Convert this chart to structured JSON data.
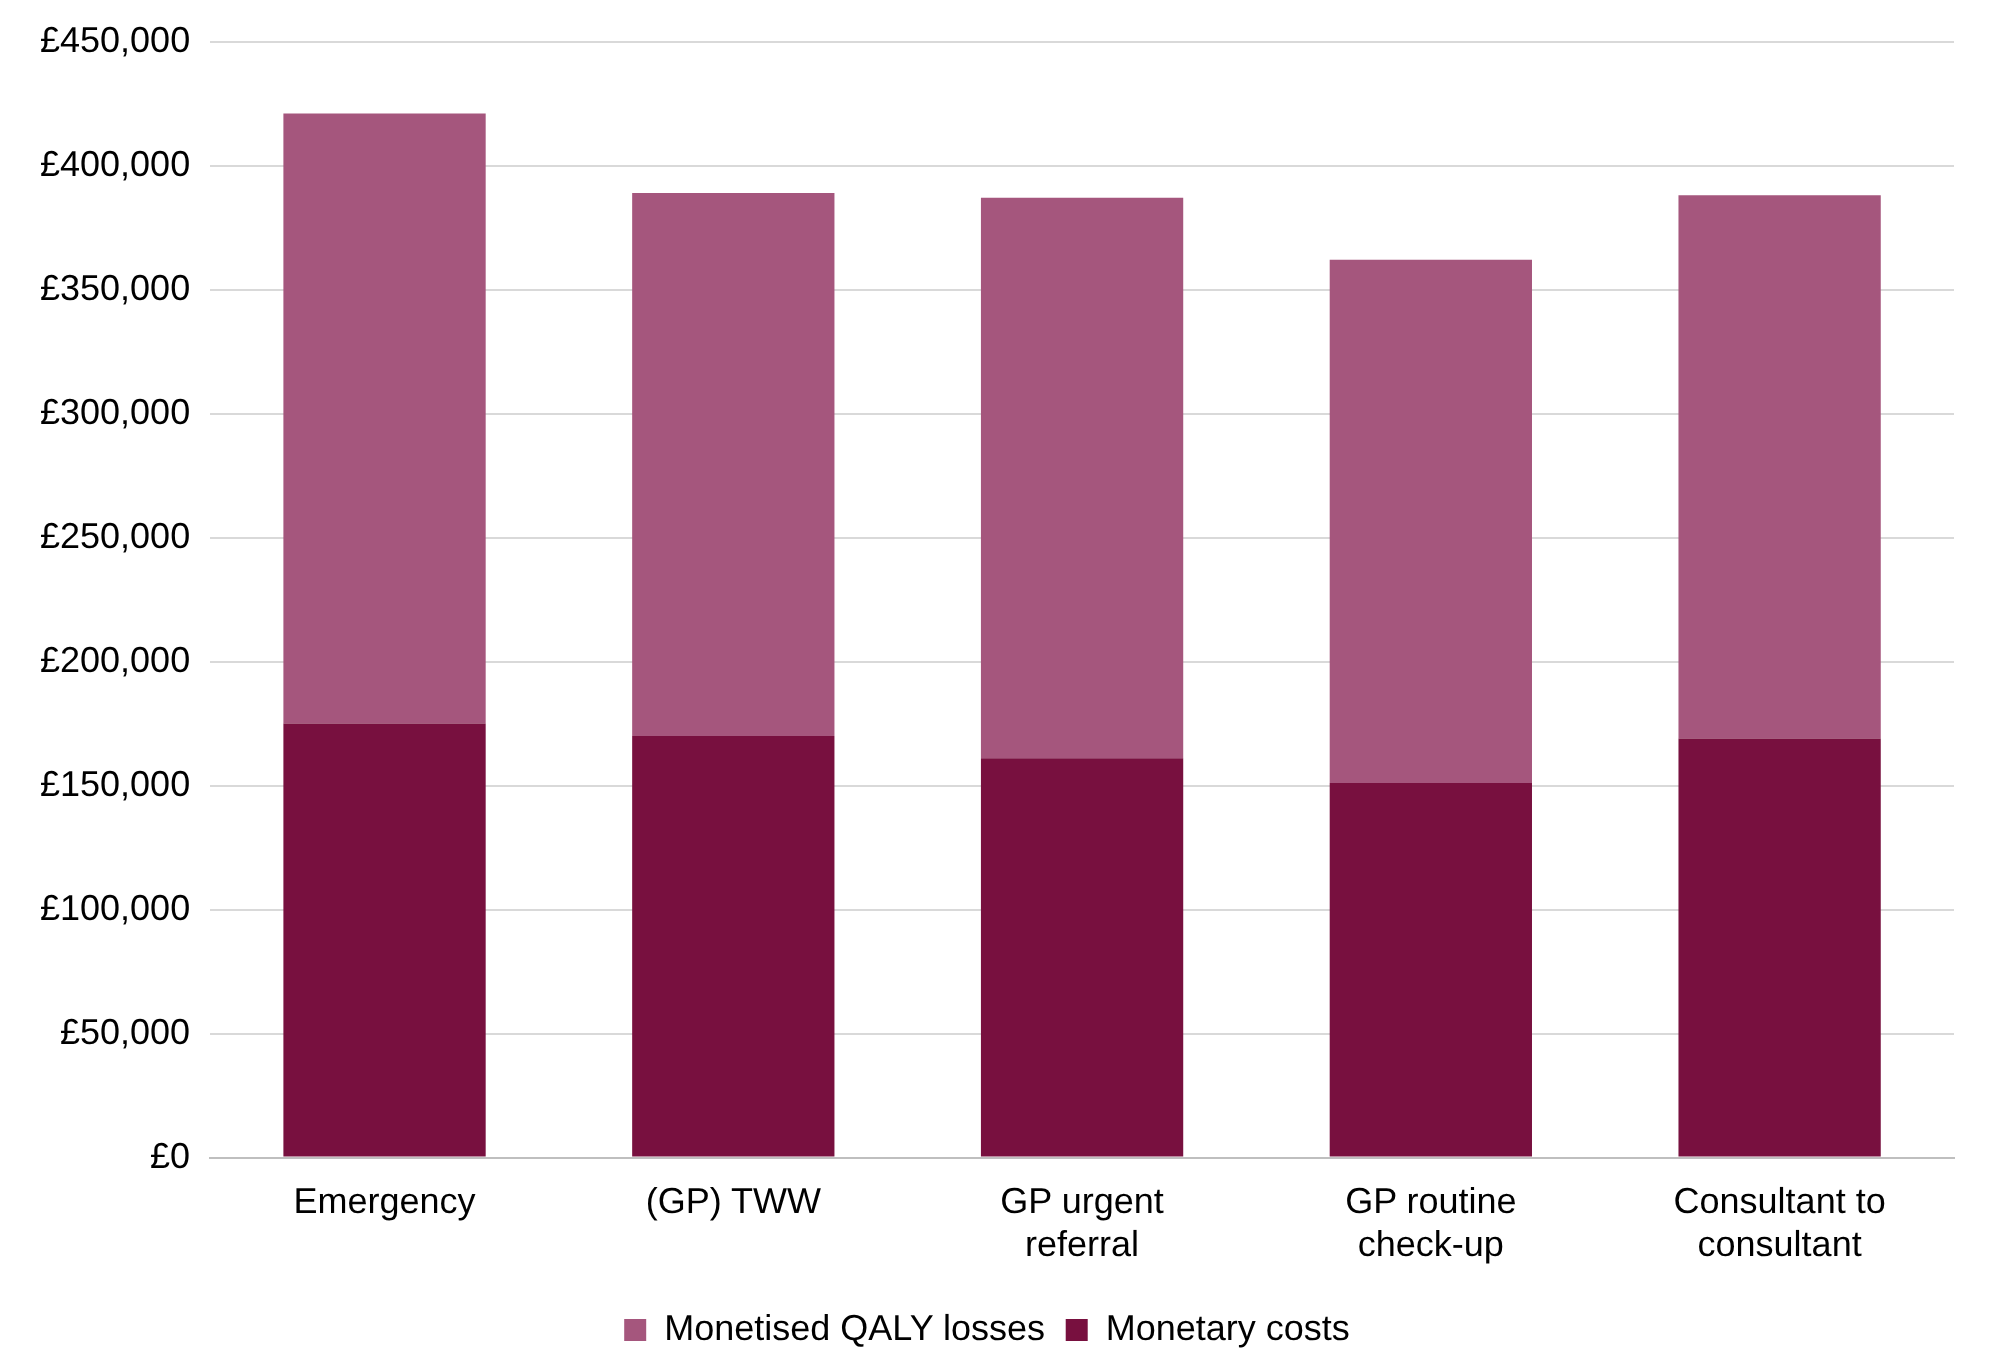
{
  "chart_data": {
    "type": "bar",
    "stacked": true,
    "categories": [
      "Emergency",
      "(GP) TWW",
      "GP urgent referral",
      "GP routine check-up",
      "Consultant to consultant"
    ],
    "series": [
      {
        "name": "Monetary costs",
        "color": "#78103f",
        "values": [
          175000,
          170000,
          161000,
          151000,
          169000
        ]
      },
      {
        "name": "Monetised QALY losses",
        "color": "#a5567d",
        "values": [
          246000,
          219000,
          226000,
          211000,
          219000
        ]
      }
    ],
    "ylim": [
      0,
      450000
    ],
    "yticks": [
      {
        "value": 0,
        "label": "£0"
      },
      {
        "value": 50000,
        "label": "£50,000"
      },
      {
        "value": 100000,
        "label": "£100,000"
      },
      {
        "value": 150000,
        "label": "£150,000"
      },
      {
        "value": 200000,
        "label": "£200,000"
      },
      {
        "value": 250000,
        "label": "£250,000"
      },
      {
        "value": 300000,
        "label": "£300,000"
      },
      {
        "value": 350000,
        "label": "£350,000"
      },
      {
        "value": 400000,
        "label": "£400,000"
      },
      {
        "value": 450000,
        "label": "£450,000"
      }
    ],
    "grid": "y",
    "legend": "bottom"
  }
}
